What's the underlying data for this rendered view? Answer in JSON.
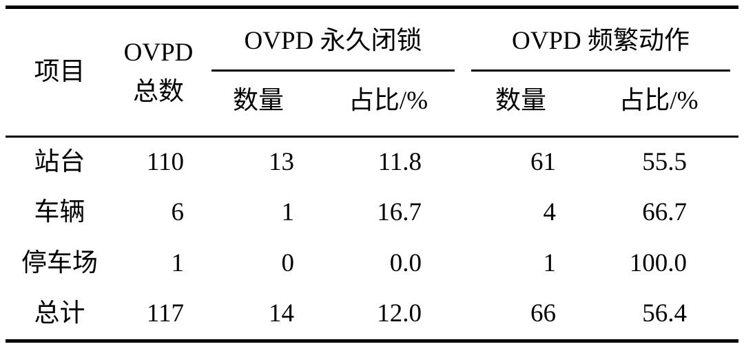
{
  "table": {
    "col_item_header": "项目",
    "col_total_header_line1": "OVPD",
    "col_total_header_line2": "总数",
    "group1_header": "OVPD 永久闭锁",
    "group2_header": "OVPD 频繁动作",
    "sub_count": "数量",
    "sub_pct": "占比/%",
    "rows": [
      {
        "item": "站台",
        "total": "110",
        "lock_count": "13",
        "lock_pct": "11.8",
        "freq_count": "61",
        "freq_pct": "55.5"
      },
      {
        "item": "车辆",
        "total": "6",
        "lock_count": "1",
        "lock_pct": "16.7",
        "freq_count": "4",
        "freq_pct": "66.7"
      },
      {
        "item": "停车场",
        "total": "1",
        "lock_count": "0",
        "lock_pct": "0.0",
        "freq_count": "1",
        "freq_pct": "100.0"
      },
      {
        "item": "总计",
        "total": "117",
        "lock_count": "14",
        "lock_pct": "12.0",
        "freq_count": "66",
        "freq_pct": "56.4"
      }
    ]
  },
  "chart_data": {
    "type": "table",
    "columns": [
      "项目",
      "OVPD 总数",
      "OVPD 永久闭锁 数量",
      "OVPD 永久闭锁 占比/%",
      "OVPD 频繁动作 数量",
      "OVPD 频繁动作 占比/%"
    ],
    "rows": [
      [
        "站台",
        110,
        13,
        11.8,
        61,
        55.5
      ],
      [
        "车辆",
        6,
        1,
        16.7,
        4,
        66.7
      ],
      [
        "停车场",
        1,
        0,
        0.0,
        1,
        100.0
      ],
      [
        "总计",
        117,
        14,
        12.0,
        66,
        56.4
      ]
    ]
  },
  "colors": {
    "text": "#000000",
    "background": "#ffffff",
    "rule": "#000000"
  }
}
